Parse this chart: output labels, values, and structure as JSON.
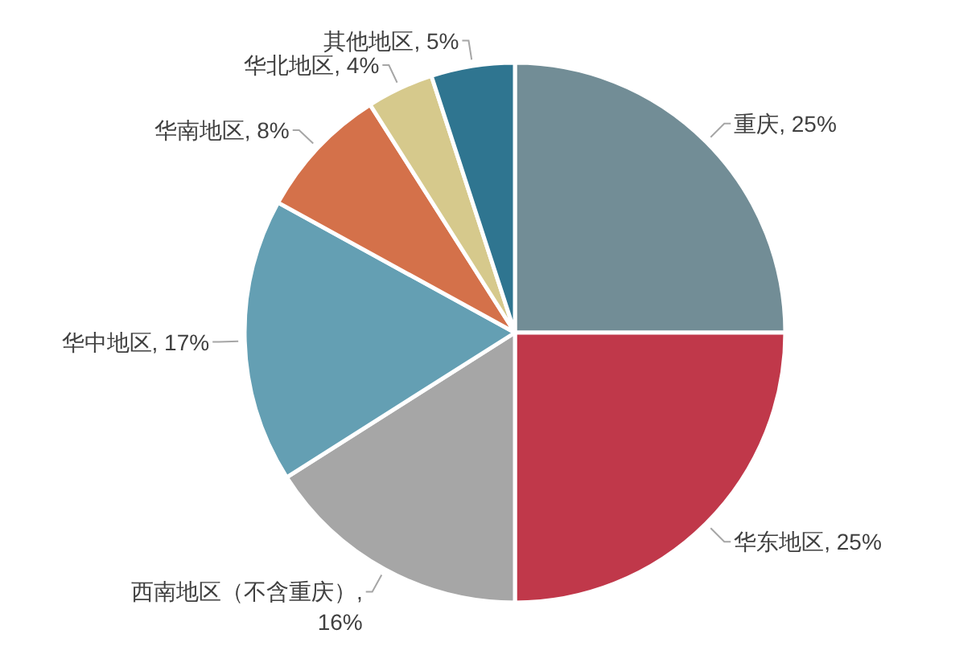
{
  "chart_data": {
    "type": "pie",
    "categories": [
      "重庆",
      "华东地区",
      "西南地区（不含重庆）",
      "华中地区",
      "华南地区",
      "华北地区",
      "其他地区"
    ],
    "values": [
      25,
      25,
      16,
      17,
      8,
      4,
      5
    ],
    "colors": [
      "#728d96",
      "#c0384a",
      "#a6a6a6",
      "#649fb3",
      "#d4714a",
      "#d6c98c",
      "#2f7590"
    ],
    "value_labels": [
      ", 25%",
      ", 25%",
      ", 16%",
      ", 17%",
      ", 8%",
      ", 4%",
      ", 5%"
    ]
  }
}
